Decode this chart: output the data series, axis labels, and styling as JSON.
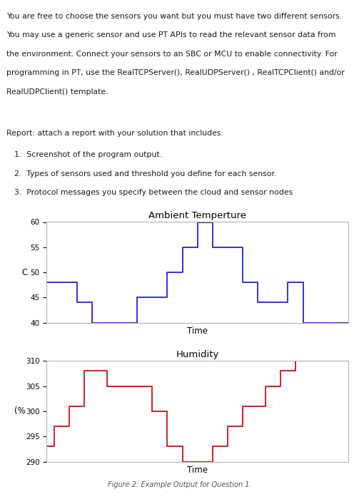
{
  "para_line1": "You are free to choose the sensors you want but you must have two different sensors.",
  "para_line2": "You may use a generic sensor and use PT APIs to read the relevant sensor data from",
  "para_line3": "the environment. Connect your sensors to an SBC or MCU to enable connectivity. For",
  "para_line4": "programming in PT, use the RealTCPServer(), RealUDPServer() , RealTCPClient() and/or",
  "para_line5": "RealUDPClient() template.",
  "report_text": "Report: attach a report with your solution that includes:",
  "list_items": [
    "Screenshot of the program output.",
    "Types of sensors used and threshold you define for each sensor.",
    "Protocol messages you specify between the cloud and sensor nodes"
  ],
  "temp_title": "Ambient Temperture",
  "temp_ylabel": "C",
  "temp_xlabel": "Time",
  "temp_ylim": [
    40,
    60
  ],
  "temp_yticks": [
    40,
    45,
    50,
    55,
    60
  ],
  "temp_x": [
    0,
    2,
    2,
    3,
    3,
    5,
    5,
    6,
    6,
    8,
    8,
    9,
    9,
    10,
    10,
    11,
    11,
    13,
    13,
    14,
    14,
    16,
    16,
    17,
    17,
    19,
    19,
    20
  ],
  "temp_y": [
    48,
    48,
    44,
    44,
    40,
    40,
    40,
    40,
    45,
    45,
    50,
    50,
    55,
    55,
    60,
    60,
    55,
    55,
    48,
    48,
    44,
    44,
    48,
    48,
    40,
    40,
    40,
    40
  ],
  "temp_color": "#3333cc",
  "hum_title": "Humidity",
  "hum_ylabel": "(%",
  "hum_xlabel": "Time",
  "hum_ylim": [
    290,
    310
  ],
  "hum_yticks": [
    290,
    295,
    300,
    305,
    310
  ],
  "hum_x": [
    0,
    0.5,
    0.5,
    1.5,
    1.5,
    2.5,
    2.5,
    4,
    4,
    5,
    5,
    7,
    7,
    8,
    8,
    9,
    9,
    10,
    10,
    11,
    11,
    12,
    12,
    13,
    13,
    14.5,
    14.5,
    15.5,
    15.5,
    16.5,
    16.5,
    17.5,
    17.5,
    19,
    19,
    20
  ],
  "hum_y": [
    293,
    293,
    297,
    297,
    301,
    301,
    308,
    308,
    305,
    305,
    305,
    305,
    300,
    300,
    293,
    293,
    290,
    290,
    290,
    290,
    293,
    293,
    297,
    297,
    301,
    301,
    305,
    305,
    308,
    308,
    310,
    310,
    310,
    310,
    310,
    310
  ],
  "hum_color": "#cc2222",
  "caption": "Figure 2: Example Output for Question 1.",
  "background_color": "#ffffff",
  "font_color": "#1a1a1a",
  "spine_color": "#aaaaaa"
}
